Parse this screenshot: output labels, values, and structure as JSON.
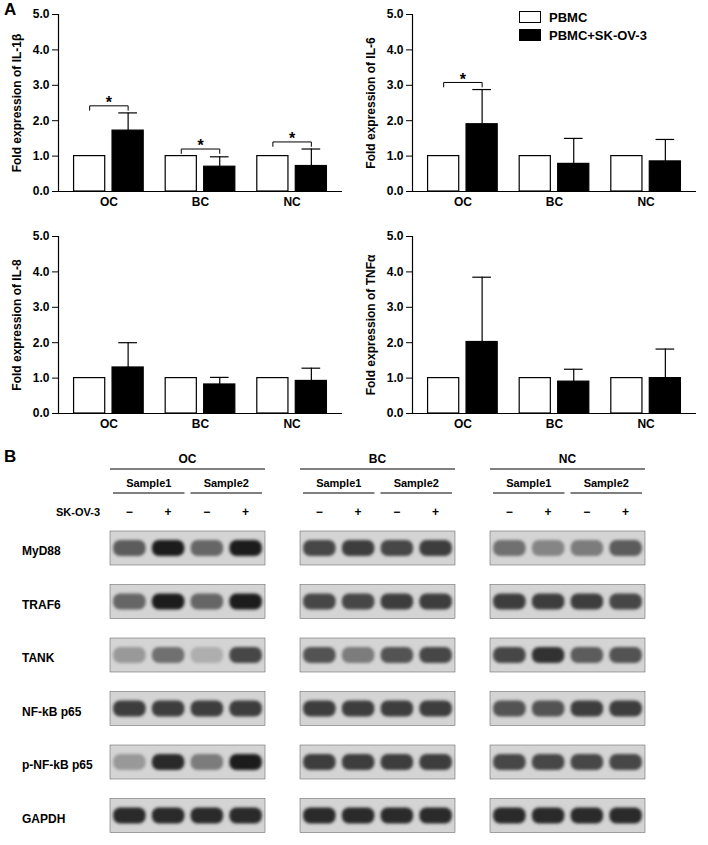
{
  "panel_labels": [
    "A",
    "B"
  ],
  "chart_data": [
    {
      "type": "bar",
      "y_label": "Fold expression of IL-1β",
      "categories": [
        "OC",
        "BC",
        "NC"
      ],
      "series": [
        {
          "name": "PBMC",
          "color": "#ffffff",
          "values": [
            1,
            1,
            1
          ]
        },
        {
          "name": "PBMC+SK-OV-3",
          "color": "#000000",
          "values": [
            1.72,
            0.7,
            0.72
          ],
          "errors": [
            0.5,
            0.28,
            0.48
          ]
        }
      ],
      "ylim": [
        0,
        5
      ],
      "yticks": [
        {
          "value": 0,
          "label": "0.0"
        },
        {
          "value": 1,
          "label": "1.0"
        },
        {
          "value": 2,
          "label": "2.0"
        },
        {
          "value": 3,
          "label": "3.0"
        },
        {
          "value": 4,
          "label": "4.0"
        },
        {
          "value": 5,
          "label": "5.0"
        }
      ],
      "annotations": [
        {
          "category": "OC",
          "text": "*"
        },
        {
          "category": "BC",
          "text": "*"
        },
        {
          "category": "NC",
          "text": "*"
        }
      ]
    },
    {
      "type": "bar",
      "y_label": "Fold expression of IL-6",
      "categories": [
        "OC",
        "BC",
        "NC"
      ],
      "series": [
        {
          "name": "PBMC",
          "color": "#ffffff",
          "values": [
            1,
            1,
            1
          ]
        },
        {
          "name": "PBMC+SK-OV-3",
          "color": "#000000",
          "values": [
            1.9,
            0.78,
            0.85
          ],
          "errors": [
            0.98,
            0.72,
            0.62
          ]
        }
      ],
      "ylim": [
        0,
        5
      ],
      "yticks": [
        {
          "value": 0,
          "label": "0.0"
        },
        {
          "value": 1,
          "label": "1.0"
        },
        {
          "value": 2,
          "label": "2.0"
        },
        {
          "value": 3,
          "label": "3.0"
        },
        {
          "value": 4,
          "label": "4.0"
        },
        {
          "value": 5,
          "label": "5.0"
        }
      ],
      "annotations": [
        {
          "category": "OC",
          "text": "*"
        }
      ],
      "legend": "top-right"
    },
    {
      "type": "bar",
      "y_label": "Fold expression of IL-8",
      "categories": [
        "OC",
        "BC",
        "NC"
      ],
      "series": [
        {
          "name": "PBMC",
          "color": "#ffffff",
          "values": [
            1,
            1,
            1
          ]
        },
        {
          "name": "PBMC+SK-OV-3",
          "color": "#000000",
          "values": [
            1.3,
            0.82,
            0.92
          ],
          "errors": [
            0.7,
            0.2,
            0.36
          ]
        }
      ],
      "ylim": [
        0,
        5
      ],
      "yticks": [
        {
          "value": 0,
          "label": "0.0"
        },
        {
          "value": 1,
          "label": "1.0"
        },
        {
          "value": 2,
          "label": "2.0"
        },
        {
          "value": 3,
          "label": "3.0"
        },
        {
          "value": 4,
          "label": "4.0"
        },
        {
          "value": 5,
          "label": "5.0"
        }
      ],
      "annotations": []
    },
    {
      "type": "bar",
      "y_label": "Fold expression of TNFα",
      "categories": [
        "OC",
        "BC",
        "NC"
      ],
      "series": [
        {
          "name": "PBMC",
          "color": "#ffffff",
          "values": [
            1,
            1,
            1
          ]
        },
        {
          "name": "PBMC+SK-OV-3",
          "color": "#000000",
          "values": [
            2.02,
            0.9,
            1.0
          ],
          "errors": [
            1.83,
            0.35,
            0.82
          ]
        }
      ],
      "ylim": [
        0,
        5
      ],
      "yticks": [
        {
          "value": 0,
          "label": "0.0"
        },
        {
          "value": 1,
          "label": "1.0"
        },
        {
          "value": 2,
          "label": "2.0"
        },
        {
          "value": 3,
          "label": "3.0"
        },
        {
          "value": 4,
          "label": "4.0"
        },
        {
          "value": 5,
          "label": "5.0"
        }
      ],
      "annotations": []
    }
  ],
  "blot": {
    "treatment": "SK-OV-3",
    "proteins": [
      "MyD88",
      "TRAF6",
      "TANK",
      "NF-kB p65",
      "p-NF-kB p65",
      "GAPDH"
    ],
    "groups": [
      {
        "label": "OC",
        "samples": [
          "Sample1",
          "Sample2"
        ],
        "lanes": [
          "−",
          "+",
          "−",
          "+"
        ],
        "band_intensity": {
          "MyD88": [
            0.65,
            0.95,
            0.6,
            0.95
          ],
          "TRAF6": [
            0.6,
            0.95,
            0.6,
            0.95
          ],
          "TANK": [
            0.35,
            0.55,
            0.25,
            0.75
          ],
          "NF-kB p65": [
            0.8,
            0.8,
            0.8,
            0.8
          ],
          "p-NF-kB p65": [
            0.35,
            0.9,
            0.5,
            0.95
          ],
          "GAPDH": [
            0.9,
            0.9,
            0.9,
            0.9
          ]
        }
      },
      {
        "label": "BC",
        "samples": [
          "Sample1",
          "Sample2"
        ],
        "lanes": [
          "−",
          "+",
          "−",
          "+"
        ],
        "band_intensity": {
          "MyD88": [
            0.75,
            0.8,
            0.75,
            0.8
          ],
          "TRAF6": [
            0.75,
            0.75,
            0.8,
            0.8
          ],
          "TANK": [
            0.7,
            0.5,
            0.7,
            0.75
          ],
          "NF-kB p65": [
            0.8,
            0.8,
            0.8,
            0.8
          ],
          "p-NF-kB p65": [
            0.8,
            0.8,
            0.8,
            0.8
          ],
          "GAPDH": [
            0.9,
            0.9,
            0.9,
            0.9
          ]
        }
      },
      {
        "label": "NC",
        "samples": [
          "Sample1",
          "Sample2"
        ],
        "lanes": [
          "−",
          "+",
          "−",
          "+"
        ],
        "band_intensity": {
          "MyD88": [
            0.55,
            0.45,
            0.5,
            0.65
          ],
          "TRAF6": [
            0.8,
            0.8,
            0.8,
            0.75
          ],
          "TANK": [
            0.75,
            0.85,
            0.65,
            0.7
          ],
          "NF-kB p65": [
            0.7,
            0.7,
            0.8,
            0.8
          ],
          "p-NF-kB p65": [
            0.75,
            0.75,
            0.75,
            0.75
          ],
          "GAPDH": [
            0.9,
            0.9,
            0.9,
            0.9
          ]
        }
      }
    ]
  }
}
